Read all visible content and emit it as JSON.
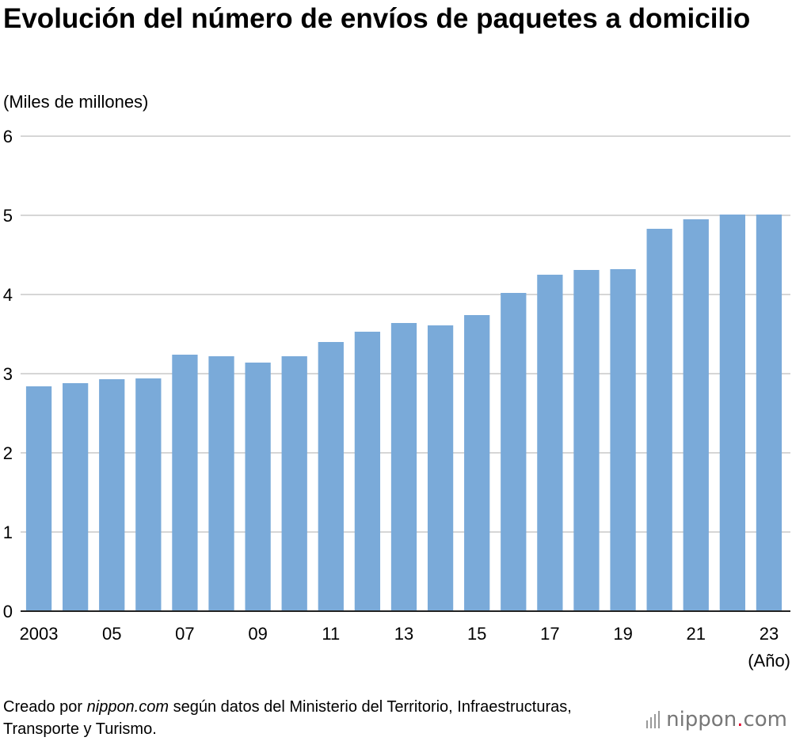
{
  "title": "Evolución del número de envíos de paquetes a domicilio",
  "unit_label": "(Miles de millones)",
  "footer": {
    "prefix": "Creado por ",
    "site": "nippon.com",
    "suffix": " según datos del Ministerio del Territorio, Infraestructuras, Transporte y Turismo."
  },
  "logo": {
    "part1": "nippon",
    "dot": ".",
    "part2": "com"
  },
  "colors": {
    "bar": "#7aaad9",
    "grid": "#c8c8c8",
    "axis": "#222222",
    "logo_dot": "#e4022b"
  },
  "chart_data": {
    "type": "bar",
    "categories": [
      "2003",
      "2004",
      "2005",
      "2006",
      "2007",
      "2008",
      "2009",
      "2010",
      "2011",
      "2012",
      "2013",
      "2014",
      "2015",
      "2016",
      "2017",
      "2018",
      "2019",
      "2020",
      "2021",
      "2022",
      "2023"
    ],
    "tick_labels": [
      "2003",
      "",
      "05",
      "",
      "07",
      "",
      "09",
      "",
      "11",
      "",
      "13",
      "",
      "15",
      "",
      "17",
      "",
      "19",
      "",
      "21",
      "",
      "23"
    ],
    "values": [
      2.84,
      2.88,
      2.93,
      2.94,
      3.24,
      3.22,
      3.14,
      3.22,
      3.4,
      3.53,
      3.64,
      3.61,
      3.74,
      4.02,
      4.25,
      4.31,
      4.32,
      4.83,
      4.95,
      5.01,
      5.01
    ],
    "ylim": [
      0,
      6
    ],
    "yticks": [
      0,
      1,
      2,
      3,
      4,
      5,
      6
    ],
    "xlabel": "(Año)",
    "ylabel": "(Miles de millones)",
    "grid": true
  }
}
